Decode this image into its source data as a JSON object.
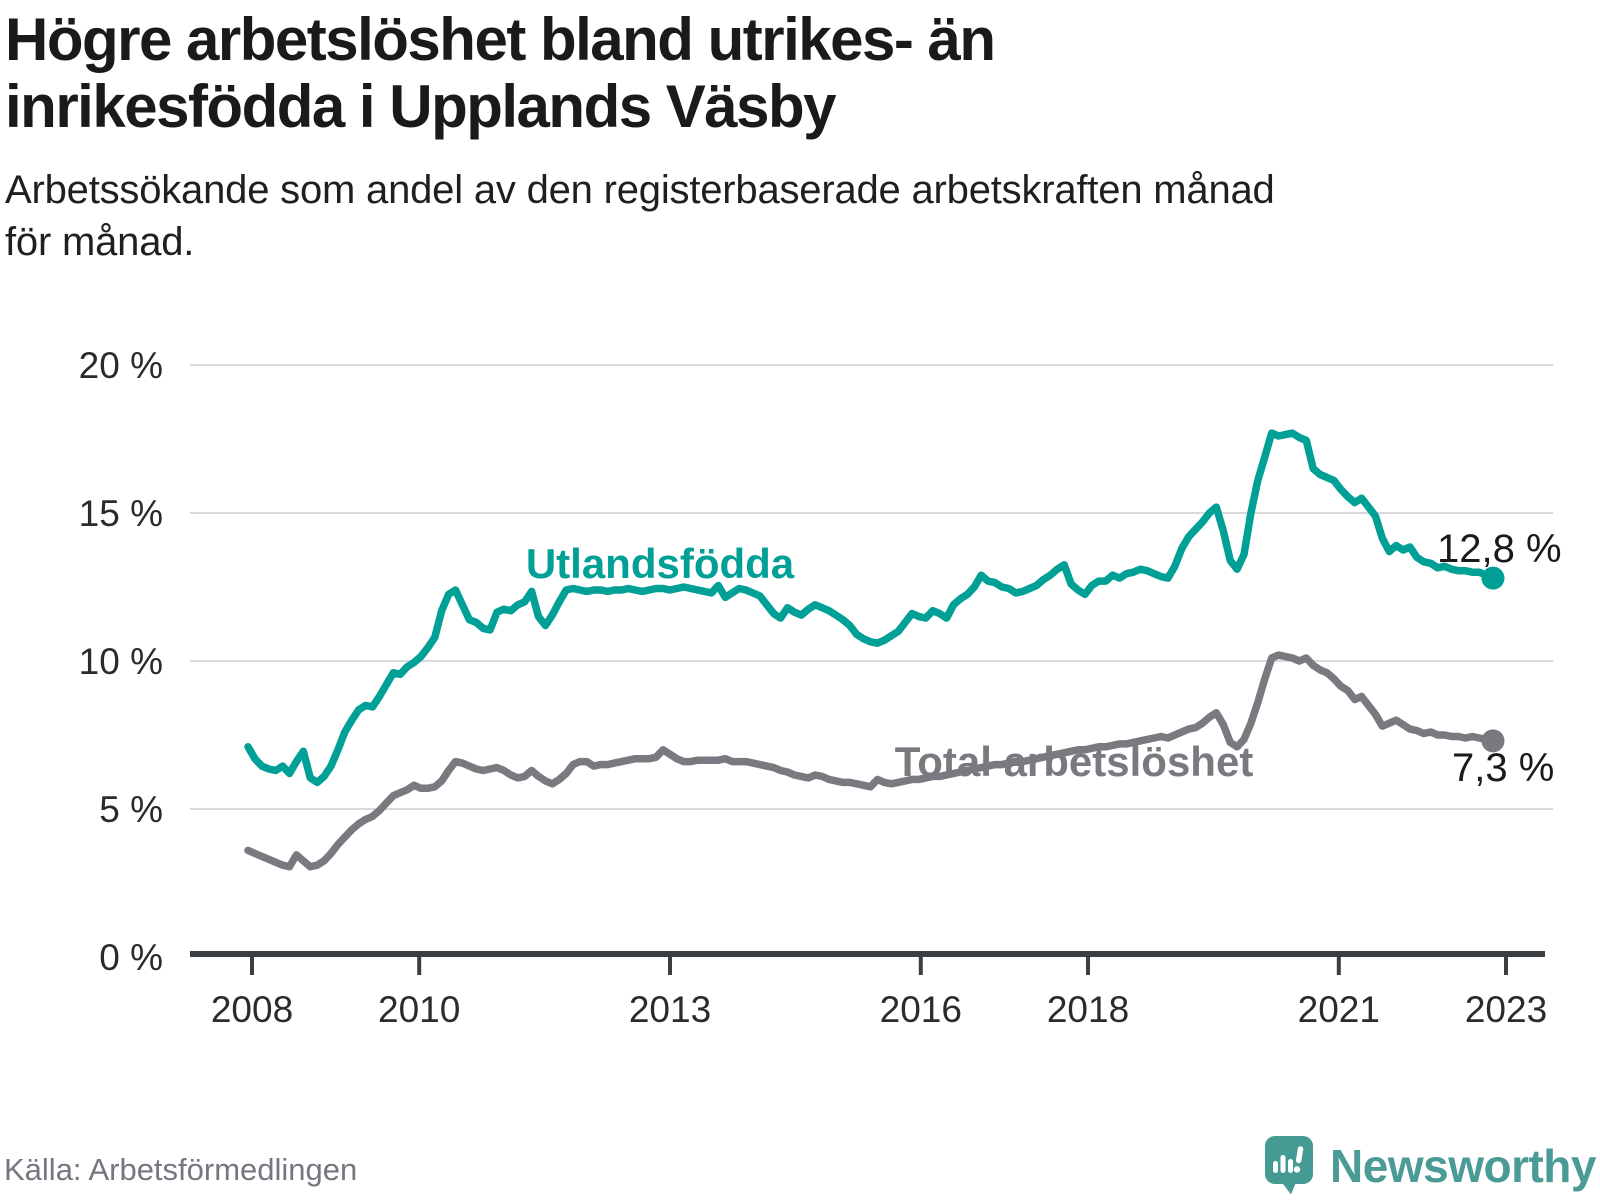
{
  "header": {
    "title": "Högre arbetslöshet bland utrikes- än\ninrikesfödda i Upplands Väsby",
    "subtitle": "Arbetssökande som andel av den registerbaserade arbetskraften månad\nför månad."
  },
  "footer": {
    "source": "Källa: Arbetsförmedlingen",
    "brand": "Newsworthy"
  },
  "colors": {
    "utlandsfodda_line": "#00a096",
    "total_line": "#7b7980",
    "grid": "#d9d9d9",
    "axis": "#3a3f42",
    "annotation_text": "#1a1a1a",
    "axis_text": "#2b2b2b",
    "brand_teal": "#4a9b95",
    "source_text": "#787580"
  },
  "chart_data": {
    "type": "line",
    "title": "Högre arbetslöshet bland utrikes- än inrikesfödda i Upplands Väsby",
    "subtitle": "Arbetssökande som andel av den registerbaserade arbetskraften månad för månad.",
    "frequency": "monthly",
    "x_start": "2008-01",
    "x_end": "2023-01",
    "ylim": [
      0,
      20
    ],
    "grid": true,
    "legend_position": "inline-labels",
    "y_ticks": [
      {
        "value": 20,
        "label": "20 %"
      },
      {
        "value": 15,
        "label": "15 %"
      },
      {
        "value": 10,
        "label": "10 %"
      },
      {
        "value": 5,
        "label": "5 %"
      },
      {
        "value": 0,
        "label": "0 %"
      }
    ],
    "x_ticks": [
      {
        "year": 2008,
        "label": "2008"
      },
      {
        "year": 2010,
        "label": "2010"
      },
      {
        "year": 2013,
        "label": "2013"
      },
      {
        "year": 2016,
        "label": "2016"
      },
      {
        "year": 2018,
        "label": "2018"
      },
      {
        "year": 2021,
        "label": "2021"
      },
      {
        "year": 2023,
        "label": "2023"
      }
    ],
    "series": [
      {
        "name": "Utlandsfödda",
        "color": "#00a096",
        "end_label": "12,8 %",
        "end_value": 12.8,
        "values": [
          7.1,
          6.7,
          6.45,
          6.35,
          6.3,
          6.45,
          6.2,
          6.6,
          6.95,
          6.05,
          5.9,
          6.1,
          6.45,
          7.0,
          7.6,
          8.0,
          8.35,
          8.5,
          8.45,
          8.8,
          9.2,
          9.6,
          9.55,
          9.8,
          9.95,
          10.15,
          10.45,
          10.8,
          11.7,
          12.25,
          12.4,
          11.9,
          11.4,
          11.3,
          11.1,
          11.05,
          11.65,
          11.75,
          11.7,
          11.9,
          12.0,
          12.35,
          11.5,
          11.2,
          11.55,
          12.0,
          12.4,
          12.45,
          12.4,
          12.35,
          12.4,
          12.4,
          12.35,
          12.4,
          12.4,
          12.45,
          12.4,
          12.35,
          12.4,
          12.45,
          12.45,
          12.4,
          12.45,
          12.5,
          12.45,
          12.4,
          12.35,
          12.3,
          12.55,
          12.15,
          12.3,
          12.45,
          12.4,
          12.3,
          12.2,
          11.9,
          11.6,
          11.45,
          11.8,
          11.65,
          11.55,
          11.75,
          11.9,
          11.8,
          11.7,
          11.55,
          11.4,
          11.2,
          10.9,
          10.75,
          10.65,
          10.6,
          10.7,
          10.85,
          11.0,
          11.3,
          11.6,
          11.5,
          11.45,
          11.7,
          11.6,
          11.45,
          11.9,
          12.1,
          12.25,
          12.5,
          12.9,
          12.7,
          12.65,
          12.5,
          12.45,
          12.3,
          12.35,
          12.45,
          12.55,
          12.75,
          12.9,
          13.1,
          13.25,
          12.6,
          12.4,
          12.25,
          12.55,
          12.7,
          12.7,
          12.9,
          12.8,
          12.95,
          13.0,
          13.1,
          13.05,
          12.95,
          12.85,
          12.8,
          13.2,
          13.8,
          14.2,
          14.45,
          14.7,
          15.0,
          15.2,
          14.4,
          13.4,
          13.1,
          13.6,
          15.0,
          16.1,
          16.9,
          17.7,
          17.6,
          17.65,
          17.7,
          17.55,
          17.45,
          16.5,
          16.3,
          16.2,
          16.1,
          15.8,
          15.55,
          15.35,
          15.5,
          15.2,
          14.9,
          14.15,
          13.7,
          13.9,
          13.75,
          13.85,
          13.5,
          13.35,
          13.3,
          13.15,
          13.2,
          13.1,
          13.05,
          13.05,
          13.0,
          13.0,
          12.9,
          12.8
        ]
      },
      {
        "name": "Total arbetslöshet",
        "color": "#7b7980",
        "end_label": "7,3 %",
        "end_value": 7.3,
        "values": [
          3.6,
          3.5,
          3.4,
          3.3,
          3.2,
          3.1,
          3.05,
          3.45,
          3.25,
          3.05,
          3.1,
          3.25,
          3.5,
          3.8,
          4.05,
          4.3,
          4.5,
          4.65,
          4.75,
          4.95,
          5.2,
          5.45,
          5.55,
          5.65,
          5.8,
          5.7,
          5.7,
          5.75,
          5.95,
          6.3,
          6.6,
          6.55,
          6.45,
          6.35,
          6.3,
          6.35,
          6.4,
          6.3,
          6.15,
          6.05,
          6.1,
          6.3,
          6.1,
          5.95,
          5.85,
          6.0,
          6.2,
          6.5,
          6.6,
          6.6,
          6.45,
          6.5,
          6.5,
          6.55,
          6.6,
          6.65,
          6.7,
          6.7,
          6.7,
          6.75,
          7.0,
          6.85,
          6.7,
          6.6,
          6.6,
          6.65,
          6.65,
          6.65,
          6.65,
          6.7,
          6.6,
          6.6,
          6.6,
          6.55,
          6.5,
          6.45,
          6.4,
          6.3,
          6.25,
          6.15,
          6.1,
          6.05,
          6.15,
          6.1,
          6.0,
          5.95,
          5.9,
          5.9,
          5.85,
          5.8,
          5.75,
          6.0,
          5.9,
          5.85,
          5.9,
          5.95,
          6.0,
          6.0,
          6.05,
          6.1,
          6.1,
          6.15,
          6.2,
          6.25,
          6.3,
          6.35,
          6.4,
          6.45,
          6.5,
          6.5,
          6.55,
          6.6,
          6.6,
          6.65,
          6.7,
          6.75,
          6.8,
          6.85,
          6.9,
          6.95,
          7.0,
          7.0,
          7.05,
          7.1,
          7.1,
          7.15,
          7.2,
          7.2,
          7.25,
          7.3,
          7.35,
          7.4,
          7.45,
          7.4,
          7.5,
          7.6,
          7.7,
          7.75,
          7.9,
          8.1,
          8.25,
          7.85,
          7.25,
          7.1,
          7.35,
          7.9,
          8.6,
          9.4,
          10.1,
          10.2,
          10.15,
          10.1,
          10.0,
          10.1,
          9.85,
          9.7,
          9.6,
          9.4,
          9.15,
          9.0,
          8.7,
          8.8,
          8.5,
          8.2,
          7.8,
          7.9,
          8.0,
          7.85,
          7.7,
          7.65,
          7.55,
          7.6,
          7.5,
          7.5,
          7.45,
          7.45,
          7.4,
          7.45,
          7.4,
          7.35,
          7.3
        ]
      }
    ]
  }
}
